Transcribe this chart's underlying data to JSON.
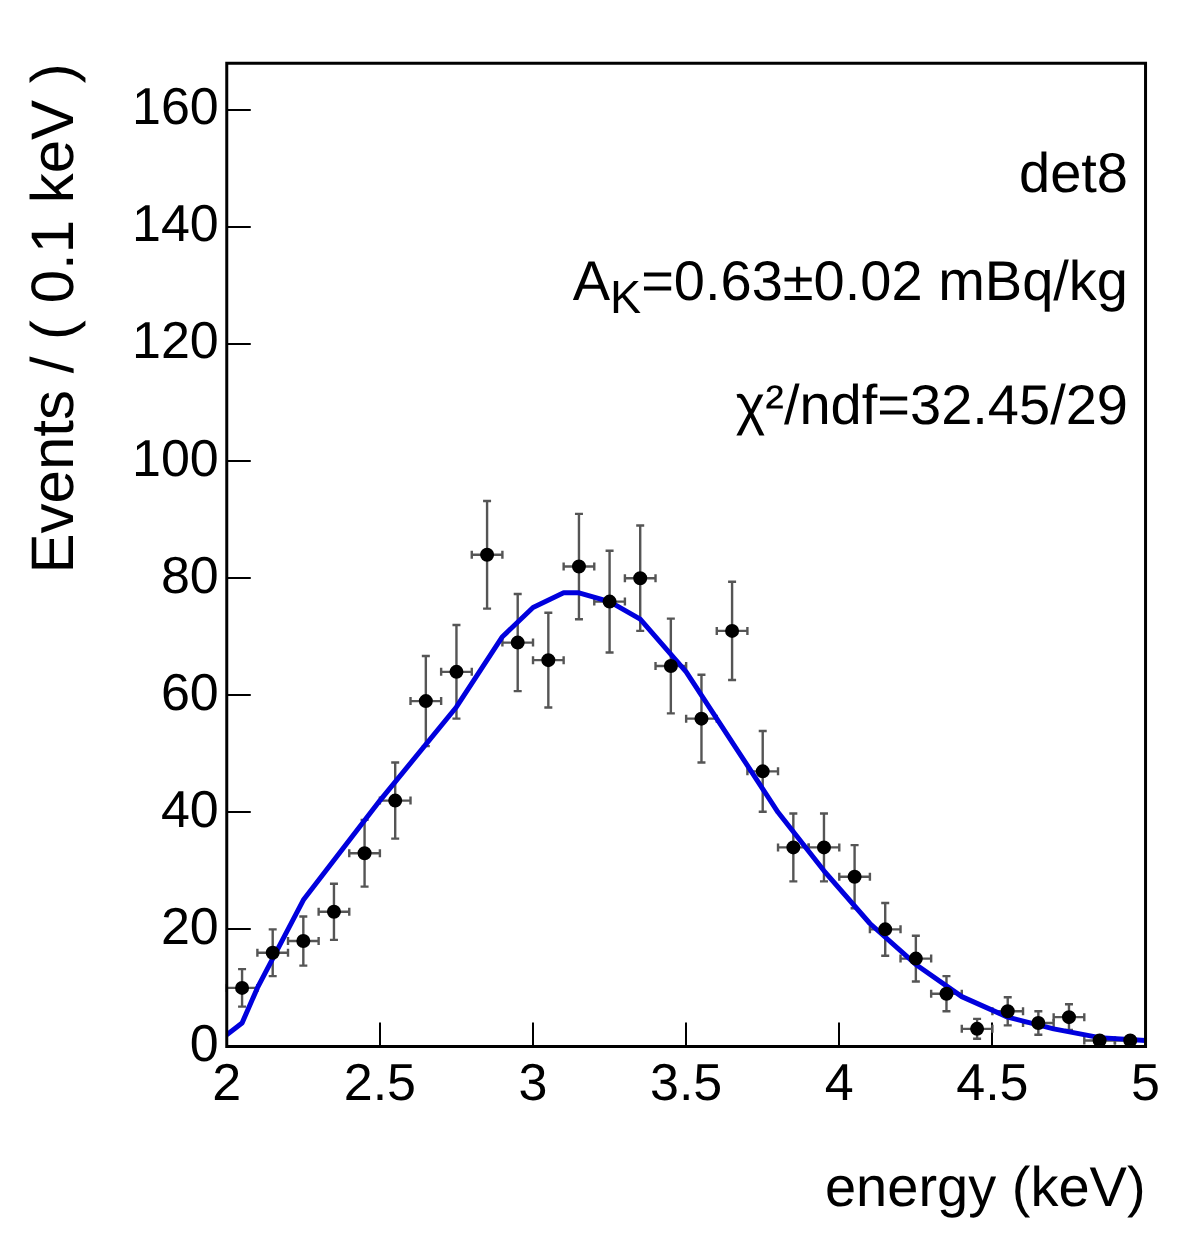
{
  "chart_data": {
    "type": "scatter",
    "xlabel": "energy (keV)",
    "ylabel": "Events / ( 0.1 keV )",
    "annotations": [
      "det8",
      "A$_{K}$=0.63±0.02 mBq/kg",
      "χ²/ndf=32.45/29"
    ],
    "xlim": [
      2,
      5
    ],
    "xticks": [
      2,
      2.5,
      3,
      3.5,
      4,
      4.5,
      5
    ],
    "ylim": [
      0,
      168
    ],
    "yticks": [
      0,
      20,
      40,
      60,
      80,
      100,
      120,
      140,
      160
    ],
    "grid": false,
    "legend": false,
    "marker": "circle",
    "series": [
      {
        "type": "scatter",
        "color": "#000000",
        "x": [
          2.05,
          2.15,
          2.25,
          2.35,
          2.45,
          2.55,
          2.65,
          2.75,
          2.85,
          2.95,
          3.05,
          3.15,
          3.25,
          3.35,
          3.45,
          3.55,
          3.65,
          3.75,
          3.85,
          3.95,
          4.05,
          4.15,
          4.25,
          4.35,
          4.45,
          4.55,
          4.65,
          4.75,
          4.85,
          4.95
        ],
        "values": [
          10,
          16,
          18,
          23,
          33,
          42,
          59,
          64,
          84,
          69,
          66,
          82,
          76,
          80,
          65,
          56,
          71,
          47,
          34,
          34,
          29,
          20,
          15,
          9,
          3,
          6,
          4,
          5,
          1,
          1
        ],
        "errors": [
          3.2,
          4,
          4.2,
          4.8,
          5.7,
          6.5,
          7.7,
          8,
          9.2,
          8.3,
          8.1,
          9,
          8.7,
          9,
          8.1,
          7.5,
          8.4,
          6.9,
          5.8,
          5.8,
          5.4,
          4.5,
          3.9,
          3,
          1.7,
          2.4,
          2,
          2.2,
          null,
          null
        ],
        "xerrors": [
          0.05,
          0.05,
          0.05,
          0.05,
          0.05,
          0.05,
          0.05,
          0.05,
          0.05,
          0.05,
          0.05,
          0.05,
          0.05,
          0.05,
          0.05,
          0.05,
          0.05,
          0.05,
          0.05,
          0.05,
          0.05,
          0.05,
          0.05,
          0.05,
          0.05,
          0.05,
          0.05,
          0.05,
          0.05,
          0.05
        ]
      },
      {
        "type": "line",
        "marker": "none",
        "color": "#0000dd",
        "x": [
          2.0,
          2.05,
          2.1,
          2.25,
          2.5,
          2.75,
          2.9,
          3.0,
          3.1,
          3.15,
          3.25,
          3.35,
          3.5,
          3.65,
          3.8,
          3.95,
          4.1,
          4.25,
          4.4,
          4.55,
          4.7,
          4.85,
          5.0
        ],
        "values": [
          2,
          4,
          10,
          25,
          42,
          58,
          70,
          75,
          77.5,
          77.5,
          76,
          73,
          64,
          52,
          40,
          30,
          21,
          14,
          8.5,
          5,
          3,
          1.5,
          1
        ]
      }
    ]
  }
}
